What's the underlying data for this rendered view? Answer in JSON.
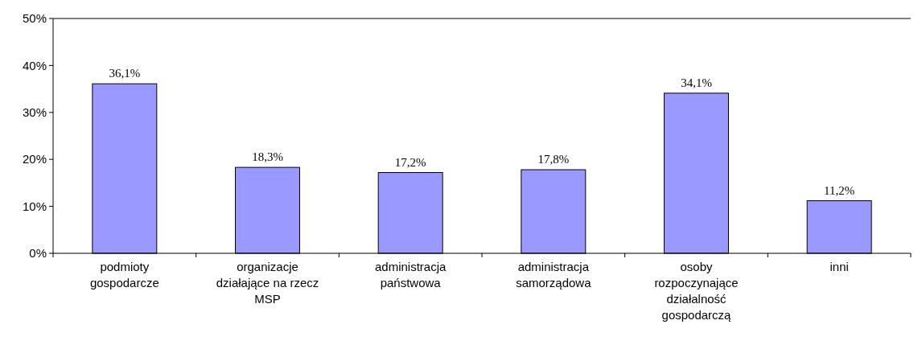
{
  "chart_data": {
    "type": "bar",
    "categories": [
      "podmioty gospodarcze",
      "organizacje działające na rzecz MSP",
      "administracja państwowa",
      "administracja samorządowa",
      "osoby rozpoczynające działalność gospodarczą",
      "inni"
    ],
    "values": [
      36.1,
      18.3,
      17.2,
      17.8,
      34.1,
      11.2
    ],
    "value_labels": [
      "36,1%",
      "18,3%",
      "17,2%",
      "17,8%",
      "34,1%",
      "11,2%"
    ],
    "color": "#9999ff",
    "ylim": [
      0,
      50
    ],
    "yticks": [
      {
        "value": 0,
        "label": "0%"
      },
      {
        "value": 10,
        "label": "10%"
      },
      {
        "value": 20,
        "label": "20%"
      },
      {
        "value": 30,
        "label": "30%"
      },
      {
        "value": 40,
        "label": "40%"
      },
      {
        "value": 50,
        "label": "50%"
      }
    ]
  }
}
